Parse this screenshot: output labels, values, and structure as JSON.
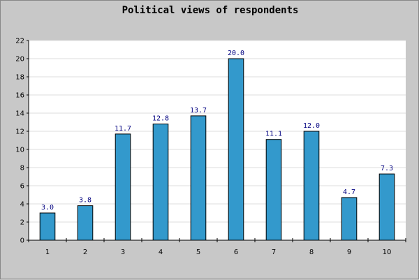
{
  "chart_data": {
    "type": "bar",
    "title": "Political views of respondents",
    "xlabel": "",
    "ylabel": "",
    "categories": [
      "1",
      "2",
      "3",
      "4",
      "5",
      "6",
      "7",
      "8",
      "9",
      "10"
    ],
    "values": [
      3.0,
      3.8,
      11.7,
      12.8,
      13.7,
      20.0,
      11.1,
      12.0,
      4.7,
      7.3
    ],
    "value_labels": [
      "3.0",
      "3.8",
      "11.7",
      "12.8",
      "13.7",
      "20.0",
      "11.1",
      "12.0",
      "4.7",
      "7.3"
    ],
    "ylim": [
      0,
      22
    ],
    "yticks": [
      "0",
      "2",
      "4",
      "6",
      "8",
      "10",
      "12",
      "14",
      "16",
      "18",
      "20",
      "22"
    ],
    "grid": true,
    "legend": "none",
    "colors": {
      "bar": "#3399cc",
      "bar_outline": "#000000",
      "plot_background": "#ffffff",
      "page_background": "#c8c8c8",
      "grid": "#dddddd",
      "value_label": "#000080"
    }
  }
}
